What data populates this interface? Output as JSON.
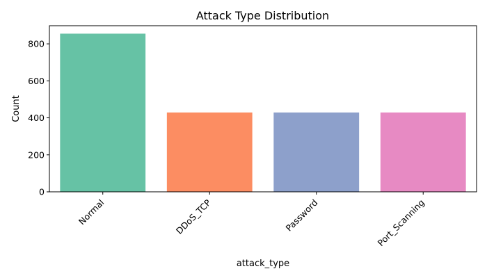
{
  "chart_data": {
    "type": "bar",
    "title": "Attack Type Distribution",
    "xlabel": "attack_type",
    "ylabel": "Count",
    "categories": [
      "Normal",
      "DDoS_TCP",
      "Password",
      "Port_Scanning"
    ],
    "values": [
      855,
      429,
      429,
      429
    ],
    "ylim": [
      0,
      898
    ],
    "yticks": [
      0,
      200,
      400,
      600,
      800
    ],
    "colors": [
      "#66c2a5",
      "#fc8d62",
      "#8da0cb",
      "#e78ac3"
    ],
    "grid": false,
    "legend": "none"
  }
}
